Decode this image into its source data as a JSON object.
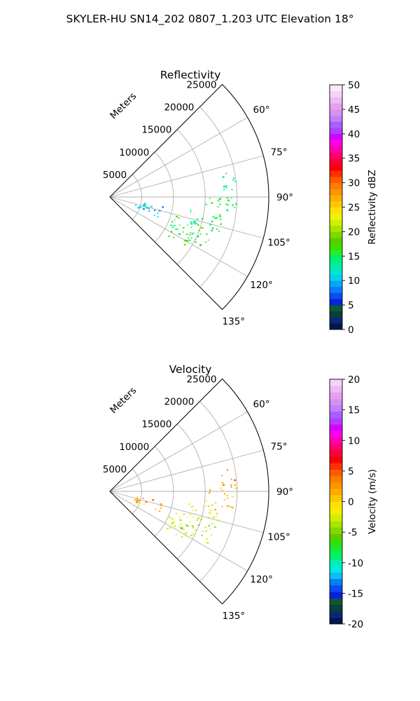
{
  "figure_title": "SKYLER-HU  SN14_202  0807_1.203 UTC Elevation 18°",
  "chart_data": [
    {
      "type": "polar-sector-scatter",
      "title": "Reflectivity",
      "range_label": "Meters",
      "range_ticks": [
        5000,
        10000,
        15000,
        20000,
        25000
      ],
      "range_max": 25000,
      "azimuth_range_deg": [
        45,
        135
      ],
      "azimuth_tick_labels": [
        "60°",
        "75°",
        "90°",
        "105°",
        "120°",
        "135°"
      ],
      "azimuth_ticks_deg": [
        60,
        75,
        90,
        105,
        120,
        135
      ],
      "grid": true,
      "colorbar": {
        "label": "Reflectivity dBZ",
        "min": 0,
        "max": 50,
        "ticks": [
          0,
          5,
          10,
          15,
          20,
          25,
          30,
          35,
          40,
          45,
          50
        ]
      },
      "echo_regions": [
        {
          "az_deg": [
            77,
            88
          ],
          "range_m": [
            17500,
            19800
          ],
          "value": 13
        },
        {
          "az_deg": [
            88,
            98
          ],
          "range_m": [
            15000,
            20000
          ],
          "value": 15
        },
        {
          "az_deg": [
            98,
            108
          ],
          "range_m": [
            12000,
            18000
          ],
          "value": 15
        },
        {
          "az_deg": [
            106,
            118
          ],
          "range_m": [
            10000,
            17500
          ],
          "value": 16
        },
        {
          "az_deg": [
            116,
            124
          ],
          "range_m": [
            10500,
            14500
          ],
          "value": 17
        },
        {
          "az_deg": [
            100,
            112
          ],
          "range_m": [
            4000,
            8500
          ],
          "value": 10
        }
      ]
    },
    {
      "type": "polar-sector-scatter",
      "title": "Velocity",
      "range_label": "Meters",
      "range_ticks": [
        5000,
        10000,
        15000,
        20000,
        25000
      ],
      "range_max": 25000,
      "azimuth_range_deg": [
        45,
        135
      ],
      "azimuth_tick_labels": [
        "60°",
        "75°",
        "90°",
        "105°",
        "120°",
        "135°"
      ],
      "azimuth_ticks_deg": [
        60,
        75,
        90,
        105,
        120,
        135
      ],
      "grid": true,
      "colorbar": {
        "label": "Velocity (m/s)",
        "min": -20,
        "max": 20,
        "ticks": [
          -20,
          -15,
          -10,
          -5,
          0,
          5,
          10,
          15,
          20
        ]
      },
      "echo_regions": [
        {
          "az_deg": [
            77,
            88
          ],
          "range_m": [
            17500,
            19800
          ],
          "value": 3
        },
        {
          "az_deg": [
            88,
            98
          ],
          "range_m": [
            15000,
            20000
          ],
          "value": 1
        },
        {
          "az_deg": [
            98,
            108
          ],
          "range_m": [
            12000,
            18000
          ],
          "value": -1
        },
        {
          "az_deg": [
            106,
            118
          ],
          "range_m": [
            10000,
            17500
          ],
          "value": -3
        },
        {
          "az_deg": [
            116,
            124
          ],
          "range_m": [
            10500,
            14500
          ],
          "value": -2
        },
        {
          "az_deg": [
            100,
            112
          ],
          "range_m": [
            4000,
            8500
          ],
          "value": 2
        }
      ]
    }
  ]
}
